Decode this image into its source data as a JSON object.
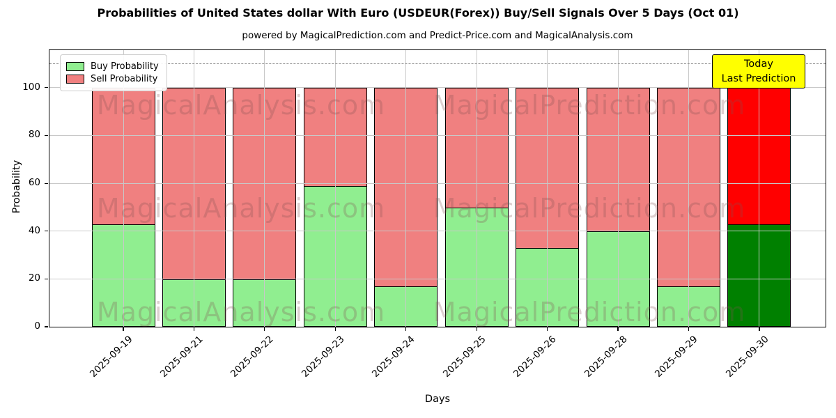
{
  "title": "Probabilities of United States dollar With Euro (USDEUR(Forex)) Buy/Sell Signals Over 5 Days (Oct 01)",
  "subtitle": "powered by MagicalPrediction.com and Predict-Price.com and MagicalAnalysis.com",
  "legend": {
    "buy_label": "Buy Probability",
    "sell_label": "Sell Probability"
  },
  "annotation": {
    "line1": "Today",
    "line2": "Last Prediction",
    "bg_color": "#ffff00"
  },
  "watermarks": {
    "left_text": "MagicalAnalysis.com",
    "right_text": "MagicalPrediction.com"
  },
  "colors": {
    "buy": "#90EE90",
    "sell": "#F08080",
    "buy_today": "#008000",
    "sell_today": "#FF0000",
    "grid": "#c8c8c8",
    "dashed_line": "#8a8a8a"
  },
  "chart_data": {
    "type": "bar",
    "stacked": true,
    "title": "Probabilities of United States dollar With Euro (USDEUR(Forex)) Buy/Sell Signals Over 5 Days (Oct 01)",
    "xlabel": "Days",
    "ylabel": "Probability",
    "categories": [
      "2025-09-19",
      "2025-09-21",
      "2025-09-22",
      "2025-09-23",
      "2025-09-24",
      "2025-09-25",
      "2025-09-26",
      "2025-09-28",
      "2025-09-29",
      "2025-09-30"
    ],
    "series": [
      {
        "name": "Buy Probability",
        "values": [
          43,
          20,
          20,
          59,
          17,
          50,
          33,
          40,
          17,
          43
        ]
      },
      {
        "name": "Sell Probability",
        "values": [
          57,
          80,
          80,
          41,
          83,
          50,
          67,
          60,
          83,
          57
        ]
      }
    ],
    "today_index": 9,
    "ylim": [
      0,
      115.7
    ],
    "yticks": [
      0,
      20,
      40,
      60,
      80,
      100
    ],
    "dashed_line_y": 110,
    "grid": true,
    "legend_position": "upper left"
  }
}
